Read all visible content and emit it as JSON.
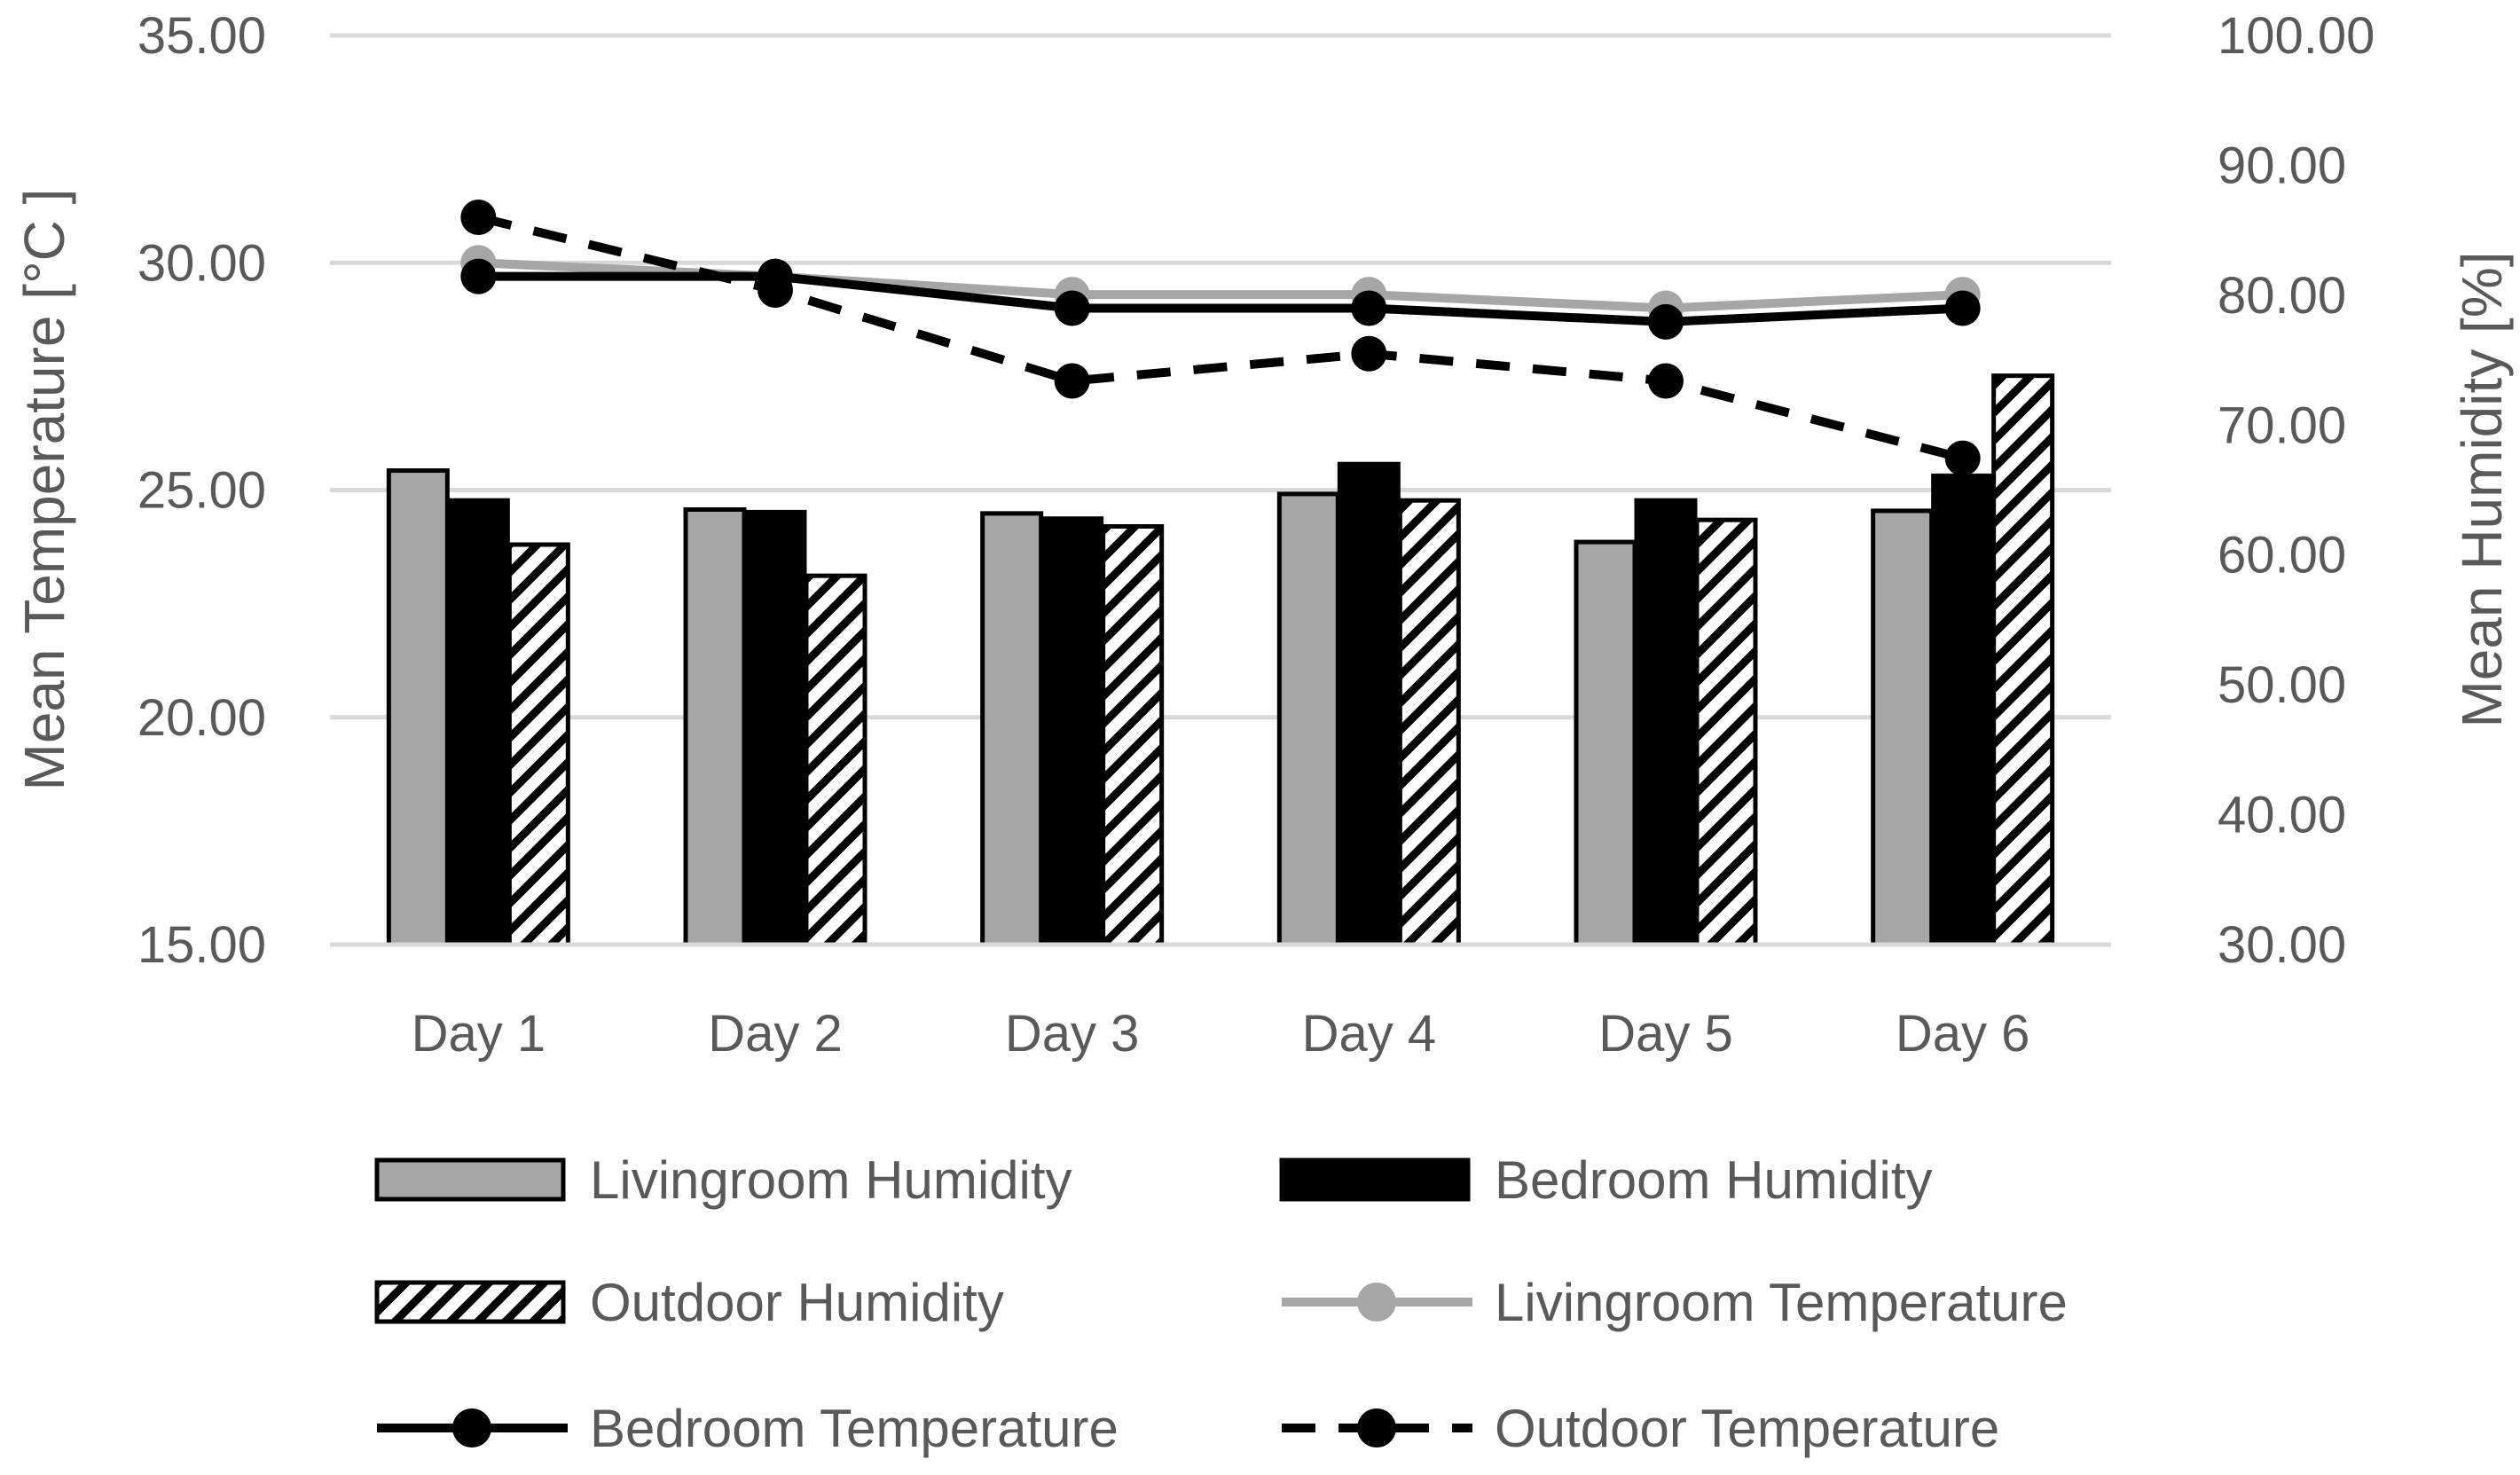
{
  "chart_data": {
    "type": "bar+line",
    "categories": [
      "Day 1",
      "Day 2",
      "Day 3",
      "Day 4",
      "Day 5",
      "Day 6"
    ],
    "left_axis": {
      "label": "Mean Temperature [°C ]",
      "min": 15,
      "max": 35,
      "step": 5,
      "tick_labels": [
        "15.00",
        "20.00",
        "25.00",
        "30.00",
        "35.00"
      ]
    },
    "right_axis": {
      "label": "Mean Humidity [%]",
      "min": 30,
      "max": 100,
      "step": 10,
      "tick_labels": [
        "30.00",
        "40.00",
        "50.00",
        "60.00",
        "70.00",
        "80.00",
        "90.00",
        "100.00"
      ]
    },
    "bar_series": [
      {
        "name": "Livingroom Humidity",
        "axis": "right",
        "style": "gray",
        "values": [
          66.5,
          63.5,
          63.2,
          64.7,
          61.0,
          63.4
        ]
      },
      {
        "name": "Bedroom Humidity",
        "axis": "right",
        "style": "black",
        "values": [
          64.2,
          63.3,
          62.8,
          67.0,
          64.2,
          66.1
        ]
      },
      {
        "name": "Outdoor Humidity",
        "axis": "right",
        "style": "hatched",
        "values": [
          60.8,
          58.4,
          62.2,
          64.2,
          62.7,
          73.8
        ]
      }
    ],
    "line_series": [
      {
        "name": "Livingroom Temperature",
        "axis": "left",
        "style": "gray-solid",
        "values": [
          30.0,
          29.7,
          29.3,
          29.3,
          29.0,
          29.3
        ]
      },
      {
        "name": "Bedroom Temperature",
        "axis": "left",
        "style": "black-solid",
        "values": [
          29.7,
          29.7,
          29.0,
          29.0,
          28.7,
          29.0
        ]
      },
      {
        "name": "Outdoor Temperature",
        "axis": "left",
        "style": "black-dashed",
        "values": [
          31.0,
          29.4,
          27.4,
          28.0,
          27.4,
          25.7
        ]
      }
    ],
    "legend_position": "bottom",
    "grid": true
  },
  "colors": {
    "gray": "#a6a6a6",
    "black": "#000000",
    "grid": "#d9d9d9",
    "text": "#595959"
  }
}
